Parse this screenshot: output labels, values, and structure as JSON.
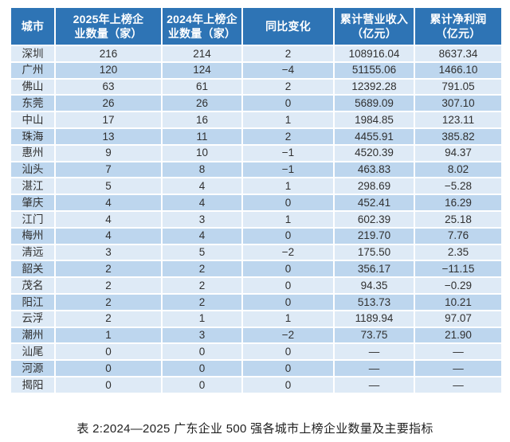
{
  "colors": {
    "header_bg": "#2E74B5",
    "row_odd": "#DEEAF6",
    "row_even": "#BDD6EE",
    "header_text": "#FFFFFF",
    "cell_text": "#303030",
    "caption_text": "#1F1F1F"
  },
  "table": {
    "columns": [
      {
        "label": "城市"
      },
      {
        "label": "2025年上榜企\n业数量（家）"
      },
      {
        "label": "2024年上榜企\n业数量（家）"
      },
      {
        "label": "同比变化"
      },
      {
        "label": "累计营业收入\n（亿元）"
      },
      {
        "label": "累计净利润\n（亿元）"
      }
    ],
    "rows": [
      {
        "city": "深圳",
        "count_2025": "216",
        "count_2024": "214",
        "change": "2",
        "revenue": "108916.04",
        "profit": "8637.34"
      },
      {
        "city": "广州",
        "count_2025": "120",
        "count_2024": "124",
        "change": "−4",
        "revenue": "51155.06",
        "profit": "1466.10"
      },
      {
        "city": "佛山",
        "count_2025": "63",
        "count_2024": "61",
        "change": "2",
        "revenue": "12392.28",
        "profit": "791.05"
      },
      {
        "city": "东莞",
        "count_2025": "26",
        "count_2024": "26",
        "change": "0",
        "revenue": "5689.09",
        "profit": "307.10"
      },
      {
        "city": "中山",
        "count_2025": "17",
        "count_2024": "16",
        "change": "1",
        "revenue": "1984.85",
        "profit": "123.11"
      },
      {
        "city": "珠海",
        "count_2025": "13",
        "count_2024": "11",
        "change": "2",
        "revenue": "4455.91",
        "profit": "385.82"
      },
      {
        "city": "惠州",
        "count_2025": "9",
        "count_2024": "10",
        "change": "−1",
        "revenue": "4520.39",
        "profit": "94.37"
      },
      {
        "city": "汕头",
        "count_2025": "7",
        "count_2024": "8",
        "change": "−1",
        "revenue": "463.83",
        "profit": "8.02"
      },
      {
        "city": "湛江",
        "count_2025": "5",
        "count_2024": "4",
        "change": "1",
        "revenue": "298.69",
        "profit": "−5.28"
      },
      {
        "city": "肇庆",
        "count_2025": "4",
        "count_2024": "4",
        "change": "0",
        "revenue": "452.41",
        "profit": "16.29"
      },
      {
        "city": "江门",
        "count_2025": "4",
        "count_2024": "3",
        "change": "1",
        "revenue": "602.39",
        "profit": "25.18"
      },
      {
        "city": "梅州",
        "count_2025": "4",
        "count_2024": "4",
        "change": "0",
        "revenue": "219.70",
        "profit": "7.76"
      },
      {
        "city": "清远",
        "count_2025": "3",
        "count_2024": "5",
        "change": "−2",
        "revenue": "175.50",
        "profit": "2.35"
      },
      {
        "city": "韶关",
        "count_2025": "2",
        "count_2024": "2",
        "change": "0",
        "revenue": "356.17",
        "profit": "−11.15"
      },
      {
        "city": "茂名",
        "count_2025": "2",
        "count_2024": "2",
        "change": "0",
        "revenue": "94.35",
        "profit": "−0.29"
      },
      {
        "city": "阳江",
        "count_2025": "2",
        "count_2024": "2",
        "change": "0",
        "revenue": "513.73",
        "profit": "10.21"
      },
      {
        "city": "云浮",
        "count_2025": "2",
        "count_2024": "1",
        "change": "1",
        "revenue": "1189.94",
        "profit": "97.07"
      },
      {
        "city": "潮州",
        "count_2025": "1",
        "count_2024": "3",
        "change": "−2",
        "revenue": "73.75",
        "profit": "21.90"
      },
      {
        "city": "汕尾",
        "count_2025": "0",
        "count_2024": "0",
        "change": "0",
        "revenue": "—",
        "profit": "—"
      },
      {
        "city": "河源",
        "count_2025": "0",
        "count_2024": "0",
        "change": "0",
        "revenue": "—",
        "profit": "—"
      },
      {
        "city": "揭阳",
        "count_2025": "0",
        "count_2024": "0",
        "change": "0",
        "revenue": "—",
        "profit": "—"
      }
    ]
  },
  "caption": "表 2:2024—2025 广东企业 500 强各城市上榜企业数量及主要指标"
}
